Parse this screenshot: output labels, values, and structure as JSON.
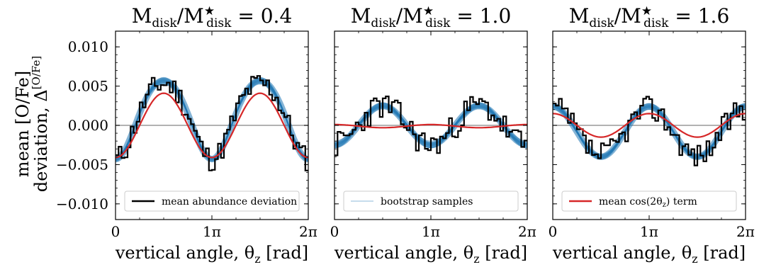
{
  "figure": {
    "ylabel_line1": "mean [O/Fe]",
    "ylabel_line2": "deviation, Δ",
    "ylabel_sup": "[O/Fe]"
  },
  "colors": {
    "data": "#000000",
    "bootstrap": "#1f77b4",
    "cos_term": "#d62728",
    "zero_line": "#999999"
  },
  "chart_data": [
    {
      "type": "line",
      "title_prefix": "M",
      "title_sub": "disk",
      "title_mid": "/M",
      "title_sup": "★",
      "title_sub2": "disk",
      "title_value": " = 0.4",
      "xlabel": "vertical angle, θ",
      "xlabel_sub": "z",
      "xlabel_unit": " [rad]",
      "xlim": [
        0,
        6.2832
      ],
      "ylim": [
        -0.012,
        0.012
      ],
      "xticks": [
        "0",
        "1π",
        "2π"
      ],
      "yticks": [
        "0.010",
        "0.005",
        "0.000",
        "−0.005",
        "−0.010"
      ],
      "legend": {
        "label": "mean abundance deviation",
        "style": "step",
        "position": "lower center"
      },
      "series": [
        {
          "name": "mean abundance deviation",
          "kind": "step",
          "amp2": -0.0048,
          "amp4": -0.0005,
          "phase": 0.0,
          "offset": 0.001,
          "noise": 0.0016,
          "seed": 11
        },
        {
          "name": "bootstrap samples",
          "kind": "band",
          "amp2": -0.005,
          "amp4": -0.0004,
          "phase": 0.0,
          "offset": 0.0011,
          "spread": 0.0006
        },
        {
          "name": "mean cos(2θz) term",
          "kind": "line",
          "amp2": -0.0041,
          "amp4": 0.0,
          "phase": 0.0,
          "offset": 0.0
        }
      ]
    },
    {
      "type": "line",
      "title_prefix": "M",
      "title_sub": "disk",
      "title_mid": "/M",
      "title_sup": "★",
      "title_sub2": "disk",
      "title_value": " = 1.0",
      "xlabel": "vertical angle, θ",
      "xlabel_sub": "z",
      "xlabel_unit": " [rad]",
      "xlim": [
        0,
        6.2832
      ],
      "ylim": [
        -0.012,
        0.012
      ],
      "xticks": [
        "0",
        "1π",
        "2π"
      ],
      "yticks": [],
      "legend": {
        "label": "bootstrap samples",
        "style": "line",
        "position": "lower center"
      },
      "series": [
        {
          "name": "mean abundance deviation",
          "kind": "step",
          "amp2": -0.0025,
          "amp4": 0.0,
          "phase": 0.0,
          "offset": 0.0,
          "noise": 0.0018,
          "seed": 23
        },
        {
          "name": "bootstrap samples",
          "kind": "band",
          "amp2": -0.0025,
          "amp4": 0.0,
          "phase": 0.0,
          "offset": 0.0,
          "spread": 0.0007
        },
        {
          "name": "mean cos(2θz) term",
          "kind": "line",
          "amp2": 0.0002,
          "amp4": 0.0,
          "phase": 0.0,
          "offset": -0.0001
        }
      ]
    },
    {
      "type": "line",
      "title_prefix": "M",
      "title_sub": "disk",
      "title_mid": "/M",
      "title_sup": "★",
      "title_sub2": "disk",
      "title_value": " = 1.6",
      "xlabel": "vertical angle, θ",
      "xlabel_sub": "z",
      "xlabel_unit": " [rad]",
      "xlim": [
        0,
        6.2832
      ],
      "ylim": [
        -0.012,
        0.012
      ],
      "xticks": [
        "0",
        "1π",
        "2π"
      ],
      "yticks": [],
      "legend": {
        "label": "mean cos(2θz) term",
        "label_pre": "mean cos(2θ",
        "label_sub": "z",
        "label_post": ") term",
        "style": "line-red",
        "position": "lower center"
      },
      "series": [
        {
          "name": "mean abundance deviation",
          "kind": "step",
          "amp2": 0.003,
          "amp4": 0.0,
          "phase": 0.0,
          "offset": -0.0008,
          "noise": 0.0016,
          "seed": 37
        },
        {
          "name": "bootstrap samples",
          "kind": "band",
          "amp2": 0.0032,
          "amp4": 0.0,
          "phase": 0.0,
          "offset": -0.0008,
          "spread": 0.0006
        },
        {
          "name": "mean cos(2θz) term",
          "kind": "line",
          "amp2": 0.0015,
          "amp4": 0.0,
          "phase": 0.0,
          "offset": 0.0
        }
      ]
    }
  ]
}
